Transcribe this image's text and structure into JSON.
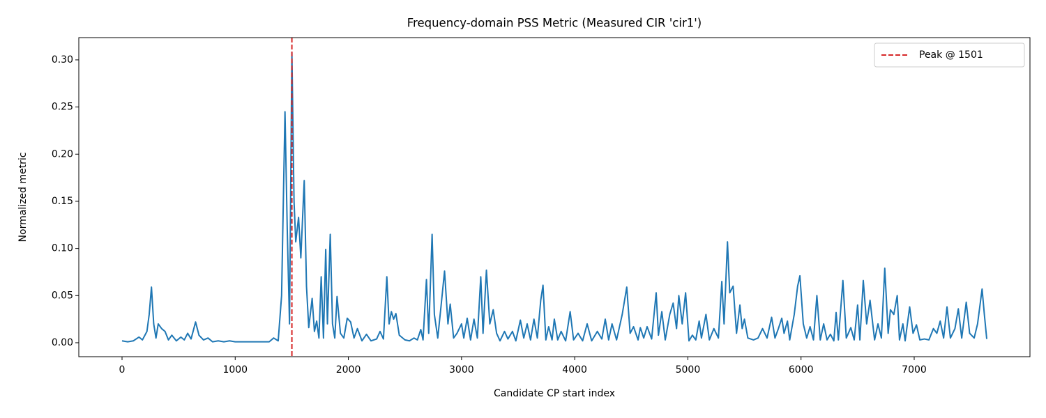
{
  "chart_data": {
    "type": "line",
    "title": "Frequency-domain PSS Metric (Measured CIR 'cir1')",
    "xlabel": "Candidate CP start index",
    "ylabel": "Normalized metric",
    "color": "#1f77b4",
    "x": [
      0,
      50,
      100,
      150,
      180,
      220,
      240,
      260,
      280,
      300,
      320,
      350,
      380,
      410,
      440,
      480,
      520,
      550,
      580,
      610,
      650,
      680,
      720,
      760,
      800,
      850,
      900,
      950,
      1000,
      1100,
      1200,
      1300,
      1340,
      1380,
      1410,
      1440,
      1460,
      1480,
      1501,
      1520,
      1535,
      1560,
      1580,
      1610,
      1630,
      1650,
      1680,
      1700,
      1720,
      1740,
      1760,
      1780,
      1800,
      1815,
      1840,
      1860,
      1880,
      1900,
      1930,
      1960,
      1990,
      2020,
      2050,
      2080,
      2120,
      2160,
      2200,
      2250,
      2280,
      2310,
      2340,
      2360,
      2380,
      2400,
      2420,
      2450,
      2500,
      2540,
      2580,
      2610,
      2640,
      2660,
      2690,
      2710,
      2740,
      2760,
      2790,
      2820,
      2850,
      2880,
      2900,
      2930,
      2960,
      3000,
      3020,
      3050,
      3080,
      3110,
      3140,
      3170,
      3190,
      3220,
      3250,
      3280,
      3310,
      3340,
      3380,
      3410,
      3450,
      3480,
      3520,
      3550,
      3580,
      3610,
      3640,
      3670,
      3700,
      3720,
      3745,
      3770,
      3800,
      3820,
      3850,
      3880,
      3920,
      3960,
      3990,
      4030,
      4070,
      4110,
      4150,
      4200,
      4240,
      4270,
      4300,
      4330,
      4370,
      4420,
      4460,
      4490,
      4520,
      4560,
      4580,
      4610,
      4640,
      4680,
      4720,
      4740,
      4770,
      4800,
      4840,
      4870,
      4900,
      4920,
      4950,
      4980,
      5010,
      5040,
      5070,
      5100,
      5120,
      5160,
      5190,
      5230,
      5270,
      5300,
      5320,
      5350,
      5370,
      5400,
      5430,
      5460,
      5480,
      5500,
      5530,
      5580,
      5620,
      5660,
      5700,
      5740,
      5770,
      5800,
      5830,
      5850,
      5880,
      5900,
      5940,
      5970,
      5990,
      6020,
      6050,
      6080,
      6110,
      6140,
      6170,
      6200,
      6230,
      6260,
      6290,
      6310,
      6330,
      6370,
      6400,
      6440,
      6470,
      6500,
      6520,
      6550,
      6580,
      6610,
      6650,
      6680,
      6710,
      6740,
      6770,
      6790,
      6820,
      6850,
      6870,
      6900,
      6920,
      6960,
      6990,
      7020,
      7050,
      7090,
      7130,
      7170,
      7200,
      7230,
      7260,
      7290,
      7320,
      7360,
      7390,
      7420,
      7460,
      7490,
      7530,
      7560,
      7600,
      7620,
      7641
    ],
    "values": [
      0.002,
      0.001,
      0.002,
      0.006,
      0.003,
      0.012,
      0.03,
      0.059,
      0.02,
      0.005,
      0.02,
      0.015,
      0.012,
      0.003,
      0.008,
      0.002,
      0.006,
      0.003,
      0.01,
      0.004,
      0.022,
      0.008,
      0.003,
      0.005,
      0.001,
      0.002,
      0.001,
      0.002,
      0.001,
      0.001,
      0.001,
      0.001,
      0.005,
      0.002,
      0.05,
      0.245,
      0.12,
      0.02,
      0.308,
      0.15,
      0.107,
      0.133,
      0.09,
      0.172,
      0.06,
      0.016,
      0.047,
      0.012,
      0.023,
      0.005,
      0.07,
      0.005,
      0.099,
      0.02,
      0.115,
      0.02,
      0.005,
      0.049,
      0.01,
      0.005,
      0.026,
      0.022,
      0.005,
      0.015,
      0.002,
      0.009,
      0.002,
      0.004,
      0.012,
      0.004,
      0.07,
      0.02,
      0.033,
      0.025,
      0.031,
      0.008,
      0.003,
      0.002,
      0.005,
      0.003,
      0.014,
      0.003,
      0.067,
      0.01,
      0.115,
      0.03,
      0.005,
      0.04,
      0.076,
      0.02,
      0.041,
      0.005,
      0.01,
      0.02,
      0.005,
      0.026,
      0.003,
      0.025,
      0.005,
      0.07,
      0.01,
      0.077,
      0.02,
      0.035,
      0.01,
      0.002,
      0.012,
      0.004,
      0.012,
      0.002,
      0.024,
      0.005,
      0.02,
      0.003,
      0.025,
      0.005,
      0.045,
      0.061,
      0.003,
      0.017,
      0.003,
      0.025,
      0.003,
      0.012,
      0.002,
      0.033,
      0.003,
      0.01,
      0.002,
      0.02,
      0.002,
      0.012,
      0.004,
      0.025,
      0.003,
      0.02,
      0.003,
      0.03,
      0.059,
      0.01,
      0.017,
      0.003,
      0.016,
      0.005,
      0.017,
      0.004,
      0.053,
      0.008,
      0.033,
      0.003,
      0.03,
      0.042,
      0.015,
      0.05,
      0.02,
      0.053,
      0.002,
      0.008,
      0.003,
      0.023,
      0.005,
      0.03,
      0.003,
      0.015,
      0.005,
      0.065,
      0.02,
      0.107,
      0.053,
      0.06,
      0.01,
      0.04,
      0.015,
      0.025,
      0.005,
      0.003,
      0.005,
      0.015,
      0.005,
      0.027,
      0.005,
      0.015,
      0.026,
      0.01,
      0.023,
      0.003,
      0.03,
      0.06,
      0.071,
      0.02,
      0.005,
      0.017,
      0.003,
      0.05,
      0.003,
      0.02,
      0.003,
      0.009,
      0.002,
      0.032,
      0.003,
      0.066,
      0.005,
      0.016,
      0.003,
      0.04,
      0.003,
      0.066,
      0.02,
      0.045,
      0.003,
      0.02,
      0.005,
      0.079,
      0.01,
      0.035,
      0.03,
      0.05,
      0.003,
      0.02,
      0.002,
      0.038,
      0.01,
      0.019,
      0.003,
      0.004,
      0.003,
      0.015,
      0.01,
      0.023,
      0.005,
      0.038,
      0.005,
      0.015,
      0.036,
      0.005,
      0.043,
      0.01,
      0.005,
      0.02,
      0.057,
      0.03,
      0.004
    ],
    "vline": {
      "x": 1501,
      "label": "Peak @ 1501",
      "color": "#d62728",
      "style": "dashed"
    },
    "legend": "upper right",
    "xlim": [
      -382,
      8023
    ],
    "ylim": [
      -0.0148,
      0.3236
    ],
    "xticks": [
      0,
      1000,
      2000,
      3000,
      4000,
      5000,
      6000,
      7000
    ],
    "yticks": [
      {
        "value": 0,
        "label": "0.00"
      },
      0.05,
      {
        "value": 0.1,
        "label": "0.10"
      },
      0.15,
      {
        "value": 0.2,
        "label": "0.20"
      },
      0.25,
      {
        "value": 0.3,
        "label": "0.30"
      }
    ]
  }
}
